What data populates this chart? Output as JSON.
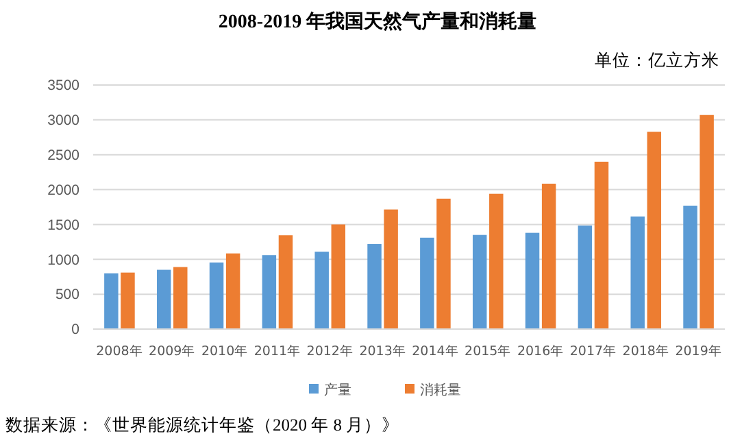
{
  "chart_data": {
    "type": "bar",
    "title": "2008-2019 年我国天然气产量和消耗量",
    "subtitle": "单位：亿立方米",
    "categories": [
      "2008年",
      "2009年",
      "2010年",
      "2011年",
      "2012年",
      "2013年",
      "2014年",
      "2015年",
      "2016年",
      "2017年",
      "2018年",
      "2019年"
    ],
    "series": [
      {
        "name": "产量",
        "color": "#5b9bd5",
        "values": [
          800,
          850,
          955,
          1060,
          1110,
          1220,
          1310,
          1350,
          1380,
          1485,
          1615,
          1770
        ]
      },
      {
        "name": "消耗量",
        "color": "#ed7d31",
        "values": [
          810,
          890,
          1085,
          1345,
          1500,
          1715,
          1870,
          1940,
          2085,
          2400,
          2830,
          3070
        ]
      }
    ],
    "ylim": [
      0,
      3500
    ],
    "yticks": [
      0,
      500,
      1000,
      1500,
      2000,
      2500,
      3000,
      3500
    ],
    "grid": "y",
    "legend": "bottom",
    "annotations": [
      "数据来源：《世界能源统计年鉴（2020 年 8 月）》"
    ]
  }
}
